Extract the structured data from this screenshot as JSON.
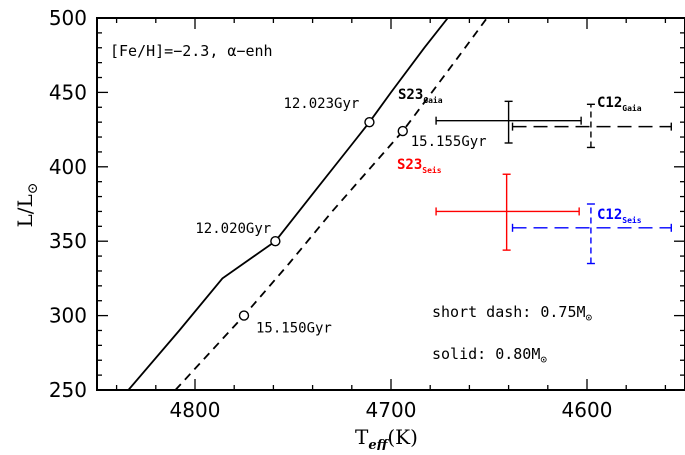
{
  "chart_data": {
    "type": "line",
    "xlabel_main": "T",
    "xlabel_sub": "eff",
    "xlabel_unit": "(K)",
    "ylabel_main": "L/L",
    "ylabel_sym": "⊙",
    "xlim": [
      4850,
      4550
    ],
    "ylim": [
      250,
      500
    ],
    "x_ticks": [
      4800,
      4700,
      4600
    ],
    "y_ticks": [
      250,
      300,
      350,
      400,
      450,
      500
    ],
    "inset_text": "[Fe/H]=−2.3, α−enh",
    "grid": false,
    "series": [
      {
        "name": "solid: 0.80M⊙",
        "style": "solid",
        "points": [
          [
            4834,
            250
          ],
          [
            4808,
            290
          ],
          [
            4786,
            325
          ],
          [
            4759,
            350
          ],
          [
            4738,
            385
          ],
          [
            4720,
            415
          ],
          [
            4711,
            430
          ],
          [
            4700,
            450
          ],
          [
            4683,
            480
          ],
          [
            4671,
            500
          ]
        ]
      },
      {
        "name": "short dash: 0.75M⊙",
        "style": "dashed",
        "points": [
          [
            4810,
            250
          ],
          [
            4775,
            300
          ],
          [
            4752,
            335
          ],
          [
            4730,
            370
          ],
          [
            4710,
            400
          ],
          [
            4694,
            424
          ],
          [
            4682,
            445
          ],
          [
            4665,
            475
          ],
          [
            4651,
            500
          ]
        ]
      }
    ],
    "markers": [
      {
        "label": "12.023Gyr",
        "x": 4711,
        "y": 430
      },
      {
        "label": "12.020Gyr",
        "x": 4759,
        "y": 350
      },
      {
        "label": "15.155Gyr",
        "x": 4694,
        "y": 424
      },
      {
        "label": "15.150Gyr",
        "x": 4775,
        "y": 300
      }
    ],
    "observations": [
      {
        "label": "S23",
        "sub": "Gaia",
        "color": "#000000",
        "style": "solid",
        "x": 4640,
        "y": 431,
        "x_lo": 4677,
        "x_hi": 4603,
        "y_lo": 416,
        "y_hi": 444
      },
      {
        "label": "C12",
        "sub": "Gaia",
        "color": "#000000",
        "style": "dashed",
        "x": 4598,
        "y": 427,
        "x_lo": 4638,
        "x_hi": 4557,
        "y_lo": 413,
        "y_hi": 442
      },
      {
        "label": "S23",
        "sub": "Seis",
        "color": "#ff0000",
        "style": "solid",
        "x": 4641,
        "y": 370,
        "x_lo": 4677,
        "x_hi": 4604,
        "y_lo": 344,
        "y_hi": 395
      },
      {
        "label": "C12",
        "sub": "Seis",
        "color": "#0000ff",
        "style": "dashed",
        "x": 4598,
        "y": 359,
        "x_lo": 4638,
        "x_hi": 4557,
        "y_lo": 335,
        "y_hi": 375
      }
    ],
    "legend_notes": [
      {
        "text": "short dash: 0.75M",
        "sym": "⊙"
      },
      {
        "text": "solid: 0.80M",
        "sym": "⊙"
      }
    ]
  }
}
